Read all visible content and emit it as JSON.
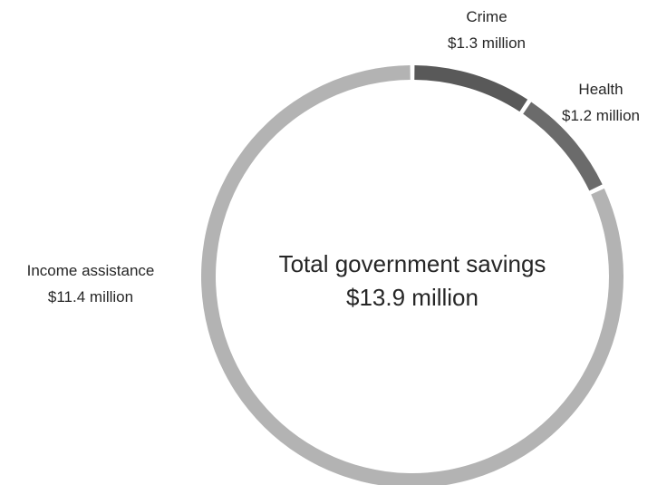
{
  "chart_data": {
    "type": "pie",
    "variant": "donut",
    "center_text": {
      "line1": "Total government savings",
      "line2": "$13.9 million"
    },
    "series": [
      {
        "slices": [
          {
            "category": "Crime",
            "value": 1.3,
            "value_label": "$1.3 million",
            "color": "#595959"
          },
          {
            "category": "Health",
            "value": 1.2,
            "value_label": "$1.2 million",
            "color": "#6b6b6b"
          },
          {
            "category": "Income assistance",
            "value": 11.4,
            "value_label": "$11.4 million",
            "color": "#b3b3b3"
          }
        ]
      }
    ],
    "units": "$ million",
    "legend": "none"
  }
}
